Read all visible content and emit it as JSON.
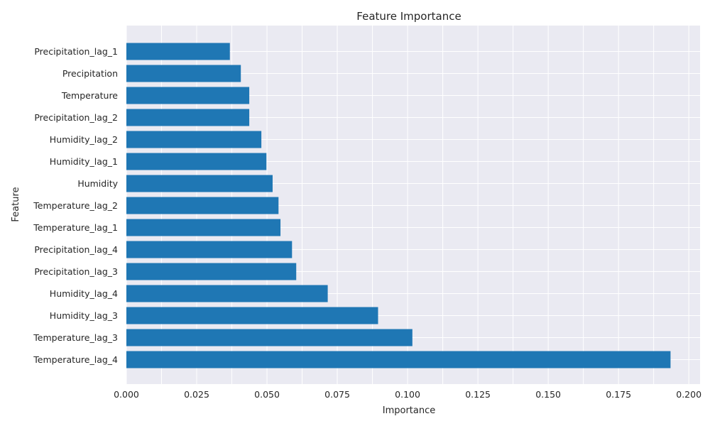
{
  "chart_data": {
    "type": "bar",
    "orientation": "horizontal",
    "title": "Feature Importance",
    "xlabel": "Importance",
    "ylabel": "Feature",
    "xlim": [
      0,
      0.204
    ],
    "xticks": [
      "0.000",
      "0.025",
      "0.050",
      "0.075",
      "0.100",
      "0.125",
      "0.150",
      "0.175",
      "0.200"
    ],
    "grid": true,
    "bar_color": "#1f77b4",
    "background_color": "#eaeaf2",
    "categories": [
      "Precipitation_lag_1",
      "Precipitation",
      "Temperature",
      "Precipitation_lag_2",
      "Humidity_lag_2",
      "Humidity_lag_1",
      "Humidity",
      "Temperature_lag_2",
      "Temperature_lag_1",
      "Precipitation_lag_4",
      "Precipitation_lag_3",
      "Humidity_lag_4",
      "Humidity_lag_3",
      "Temperature_lag_3",
      "Temperature_lag_4"
    ],
    "values": [
      0.0368,
      0.0407,
      0.0437,
      0.0437,
      0.048,
      0.0498,
      0.052,
      0.0541,
      0.0548,
      0.0589,
      0.0604,
      0.0716,
      0.0895,
      0.1017,
      0.1935
    ]
  }
}
